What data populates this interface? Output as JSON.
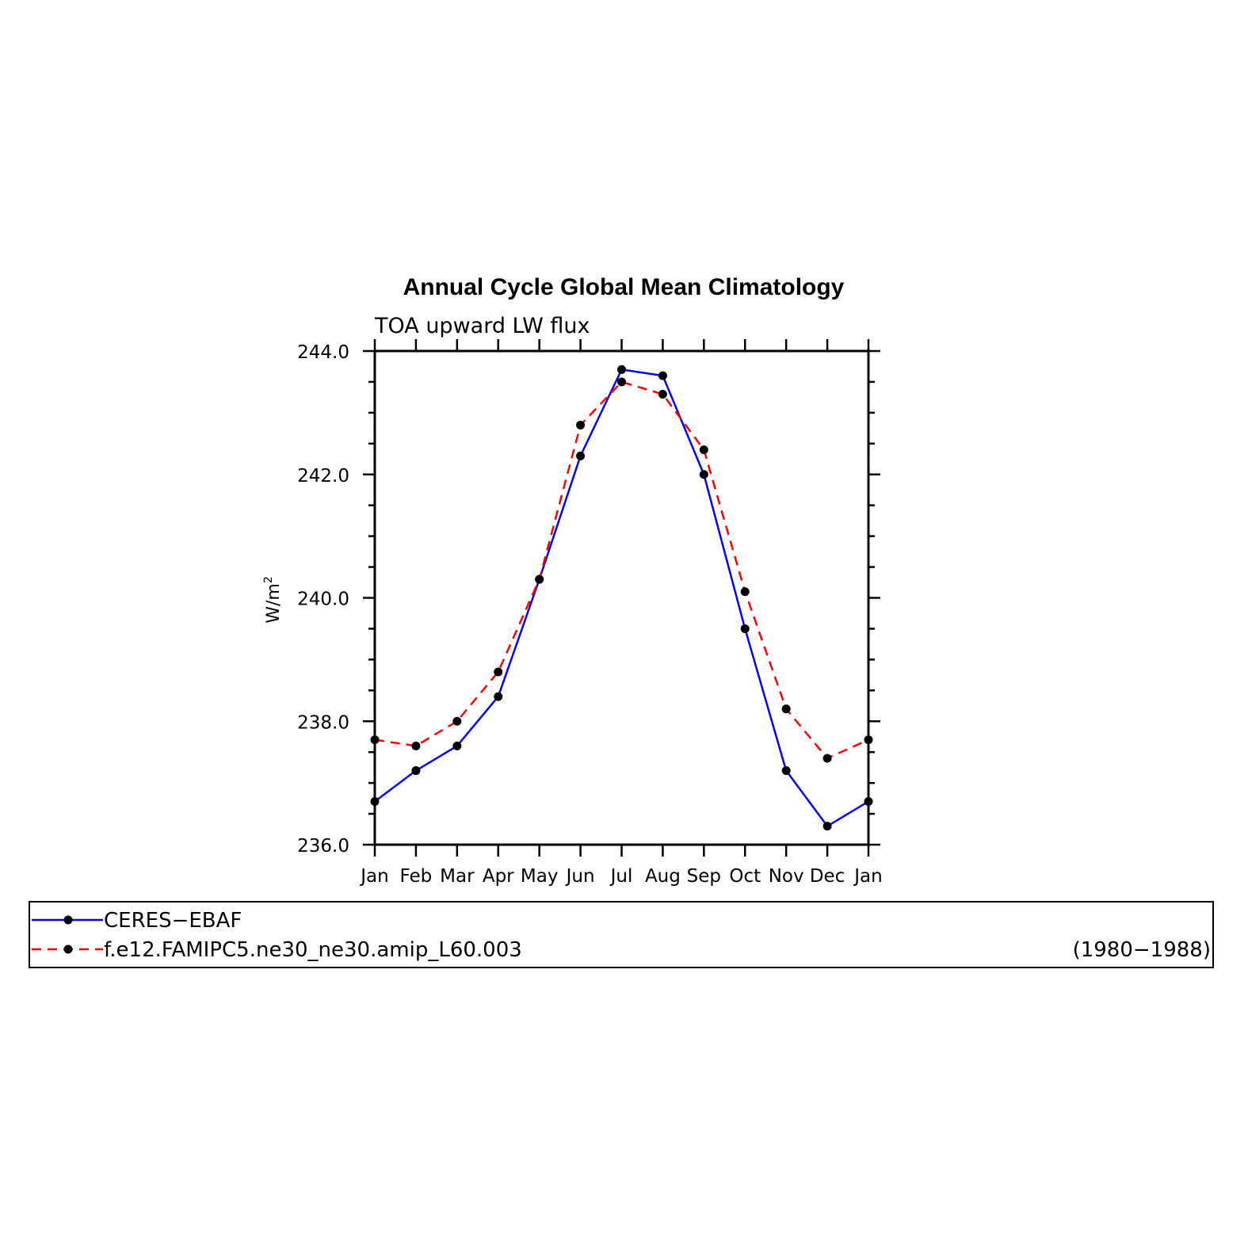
{
  "chart_data": {
    "type": "line",
    "title": "Annual Cycle Global Mean Climatology",
    "subtitle": "TOA upward LW flux",
    "ylabel": "W/m",
    "ylabel_superscript": "2",
    "categories": [
      "Jan",
      "Feb",
      "Mar",
      "Apr",
      "May",
      "Jun",
      "Jul",
      "Aug",
      "Sep",
      "Oct",
      "Nov",
      "Dec",
      "Jan"
    ],
    "ylim": [
      236.0,
      244.0
    ],
    "yticks": [
      "236.0",
      "238.0",
      "240.0",
      "242.0",
      "244.0"
    ],
    "grid": false,
    "legend_position": "bottom",
    "legend_period": "(1980−1988)",
    "series": [
      {
        "name": "CERES−EBAF",
        "color": "#0000ff",
        "line_style": "solid",
        "marker": "dot",
        "values": [
          236.7,
          237.2,
          237.6,
          238.4,
          240.3,
          242.3,
          243.7,
          243.6,
          242.0,
          239.5,
          237.2,
          236.3,
          236.7
        ]
      },
      {
        "name": "f.e12.FAMIPC5.ne30_ne30.amip_L60.003",
        "color": "#ff0000",
        "line_style": "dashed",
        "marker": "dot",
        "values": [
          237.7,
          237.6,
          238.0,
          238.8,
          240.3,
          242.8,
          243.5,
          243.3,
          242.4,
          240.1,
          238.2,
          237.4,
          237.7
        ]
      }
    ]
  }
}
